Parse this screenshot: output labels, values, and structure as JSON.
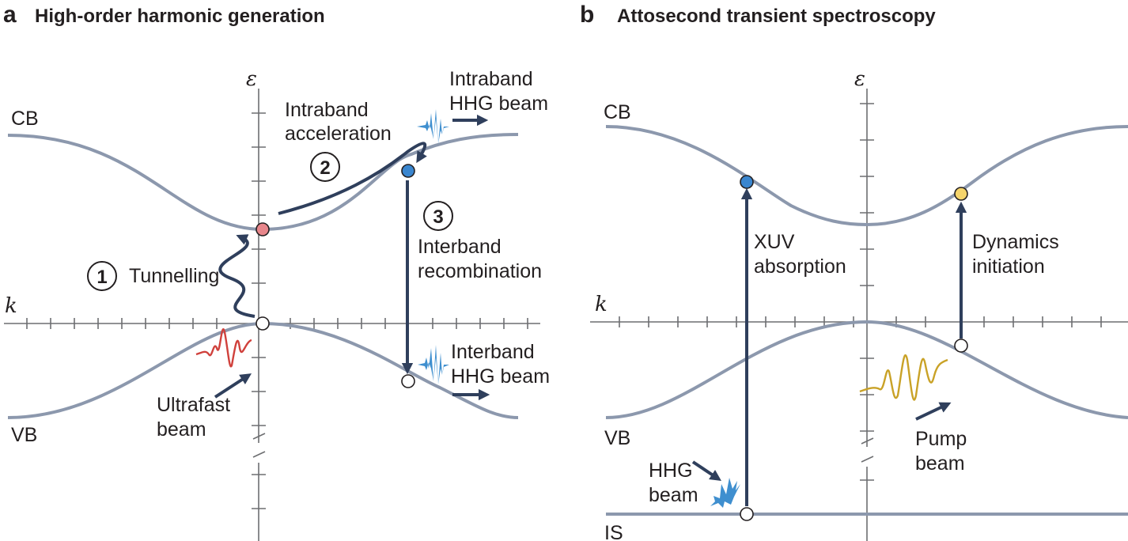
{
  "panel_a": {
    "letter": "a",
    "title": "High-order harmonic generation",
    "axis_energy": "ε",
    "axis_k": "k",
    "band_cb": "CB",
    "band_vb": "VB",
    "step1_number": "1",
    "step1_label": "Tunnelling",
    "step2_number": "2",
    "step2_label_line1": "Intraband",
    "step2_label_line2": "acceleration",
    "step3_number": "3",
    "step3_label_line1": "Interband",
    "step3_label_line2": "recombination",
    "intraband_beam_line1": "Intraband",
    "intraband_beam_line2": "HHG beam",
    "interband_beam_line1": "Interband",
    "interband_beam_line2": "HHG beam",
    "ultrafast_line1": "Ultrafast",
    "ultrafast_line2": "beam"
  },
  "panel_b": {
    "letter": "b",
    "title": "Attosecond transient spectroscopy",
    "axis_energy": "ε",
    "axis_k": "k",
    "band_cb": "CB",
    "band_vb": "VB",
    "band_is": "IS",
    "xuv_line1": "XUV",
    "xuv_line2": "absorption",
    "dyn_line1": "Dynamics",
    "dyn_line2": "initiation",
    "pump_line1": "Pump",
    "pump_line2": "beam",
    "hhg_line1": "HHG",
    "hhg_line2": "beam"
  },
  "colors": {
    "band": "#8c98ad",
    "arrow": "#2f3f5c",
    "ultrafast_pulse": "#d0413c",
    "hhg_pulse": "#3f8fcf",
    "pump_pulse": "#c9a227",
    "hole_marker": "#e8868b",
    "electron_marker": "#3a86cf",
    "excited_marker": "#f5d46b"
  }
}
